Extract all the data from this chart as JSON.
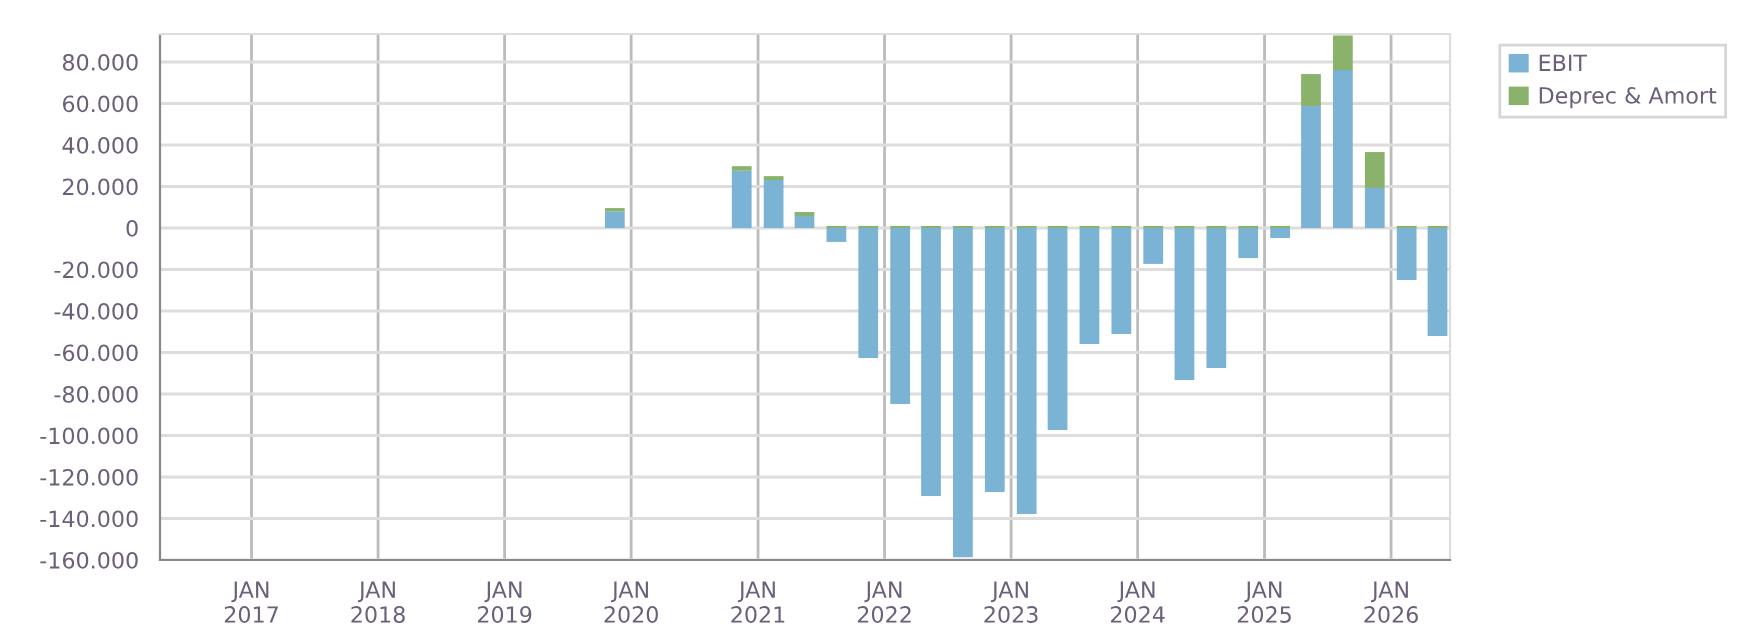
{
  "chart_data": {
    "type": "bar",
    "stacked": true,
    "x": [
      "2019-11-15",
      "2020-11-15",
      "2021-02-15",
      "2021-05-15",
      "2021-08-15",
      "2021-11-15",
      "2022-02-15",
      "2022-05-15",
      "2022-08-15",
      "2022-11-15",
      "2023-02-15",
      "2023-05-15",
      "2023-08-15",
      "2023-11-15",
      "2024-02-15",
      "2024-05-15",
      "2024-08-15",
      "2024-11-15",
      "2025-02-15",
      "2025-05-15",
      "2025-08-15",
      "2025-11-15",
      "2026-02-15",
      "2026-05-15"
    ],
    "series": [
      {
        "name": "EBIT",
        "color": "#7ab3d4",
        "values": [
          8000,
          27600,
          23100,
          5800,
          -6700,
          -62700,
          -84800,
          -129200,
          -158700,
          -127200,
          -137800,
          -97300,
          -55900,
          -51100,
          -17300,
          -73300,
          -67500,
          -14500,
          -4800,
          58800,
          76100,
          19300,
          -25100,
          -52000
        ]
      },
      {
        "name": "Deprec & Amort",
        "color": "#8ab26a",
        "values": [
          1600,
          2200,
          1900,
          1900,
          1000,
          1000,
          1000,
          1000,
          1000,
          1000,
          1000,
          1000,
          1000,
          1000,
          1000,
          1000,
          1000,
          1000,
          1000,
          15400,
          16700,
          17300,
          1000,
          1000
        ]
      }
    ],
    "xlim": [
      "2016-04-12",
      "2026-06-20"
    ],
    "xticks": [
      {
        "value": "2017-01-01",
        "label": "JAN\n2017"
      },
      {
        "value": "2018-01-01",
        "label": "JAN\n2018"
      },
      {
        "value": "2019-01-01",
        "label": "JAN\n2019"
      },
      {
        "value": "2020-01-01",
        "label": "JAN\n2020"
      },
      {
        "value": "2021-01-01",
        "label": "JAN\n2021"
      },
      {
        "value": "2022-01-01",
        "label": "JAN\n2022"
      },
      {
        "value": "2023-01-01",
        "label": "JAN\n2023"
      },
      {
        "value": "2024-01-01",
        "label": "JAN\n2024"
      },
      {
        "value": "2025-01-01",
        "label": "JAN\n2025"
      },
      {
        "value": "2026-01-01",
        "label": "JAN\n2026"
      }
    ],
    "ylim": [
      -160000,
      93500
    ],
    "yticks": [
      {
        "value": 80000,
        "label": "80.000"
      },
      {
        "value": 60000,
        "label": "60.000"
      },
      {
        "value": 40000,
        "label": "40.000"
      },
      {
        "value": 20000,
        "label": "20.000"
      },
      0,
      {
        "value": -20000,
        "label": "-20.000"
      },
      {
        "value": -40000,
        "label": "-40.000"
      },
      {
        "value": -60000,
        "label": "-60.000"
      },
      {
        "value": -80000,
        "label": "-80.000"
      },
      {
        "value": -100000,
        "label": "-100.000"
      },
      {
        "value": -120000,
        "label": "-120.000"
      },
      {
        "value": -140000,
        "label": "-140.000"
      },
      {
        "value": -160000,
        "label": "-160.000"
      }
    ],
    "grid": true,
    "legend": "top right"
  }
}
